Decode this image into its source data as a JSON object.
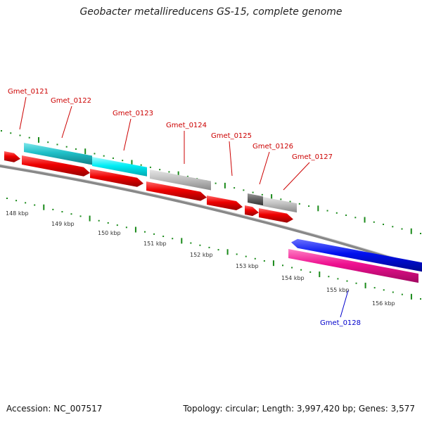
{
  "title": "Geobacter metallireducens GS-15, complete genome",
  "footer": {
    "accession": "Accession: NC_007517",
    "info": "Topology: circular; Length: 3,997,420 bp; Genes: 3,577"
  },
  "colors": {
    "cds": "#ee0000",
    "teal": "#20c0c8",
    "cyan": "#00e8f0",
    "grey": "#bbbbbb",
    "dark_grey": "#666666",
    "blue": "#0010ee",
    "magenta": "#ee1090",
    "label_red": "#cc0000",
    "label_blue": "#0000cc",
    "tick": "#1a8a1a",
    "backbone": "#888888"
  },
  "ticks": [
    "148 kbp",
    "149 kbp",
    "150 kbp",
    "151 kbp",
    "152 kbp",
    "153 kbp",
    "154 kbp",
    "155 kbp",
    "156 kbp"
  ],
  "genes": [
    {
      "id": "Gmet_0121",
      "color": "label_red"
    },
    {
      "id": "Gmet_0122",
      "color": "label_red"
    },
    {
      "id": "Gmet_0123",
      "color": "label_red"
    },
    {
      "id": "Gmet_0124",
      "color": "label_red"
    },
    {
      "id": "Gmet_0125",
      "color": "label_red"
    },
    {
      "id": "Gmet_0126",
      "color": "label_red"
    },
    {
      "id": "Gmet_0127",
      "color": "label_red"
    },
    {
      "id": "Gmet_0128",
      "color": "label_blue"
    }
  ]
}
